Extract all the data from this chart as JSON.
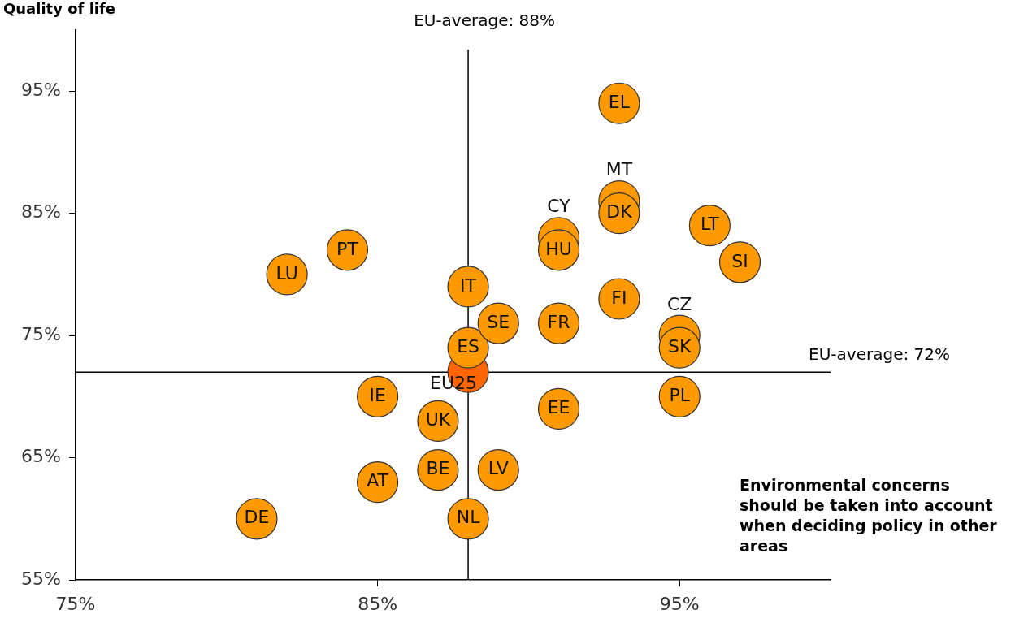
{
  "chart_data": {
    "type": "scatter",
    "xlabel": "Environmental concerns should be taken into account when deciding policy in other areas",
    "ylabel": "Quality of life",
    "marker": "circle",
    "grid": false,
    "xlim": [
      75,
      100
    ],
    "ylim": [
      55,
      100
    ],
    "xticks": [
      {
        "value": 75,
        "label": "75%"
      },
      {
        "value": 85,
        "label": "85%"
      },
      {
        "value": 95,
        "label": "95%"
      }
    ],
    "yticks": [
      {
        "value": 55,
        "label": "55%"
      },
      {
        "value": 65,
        "label": "65%"
      },
      {
        "value": 75,
        "label": "75%"
      },
      {
        "value": 85,
        "label": "85%"
      },
      {
        "value": 95,
        "label": "95%"
      }
    ],
    "ref_lines": [
      {
        "axis": "x",
        "value": 88,
        "label": "EU-average: 88%",
        "color": "#000000"
      },
      {
        "axis": "y",
        "value": 72,
        "label": "EU-average: 72%",
        "color": "#000000"
      }
    ],
    "series": [
      {
        "name": "EU25",
        "color": "#ff6600",
        "x": [
          88
        ],
        "values": [
          72
        ]
      },
      {
        "name": "EL",
        "color": "#ff9900",
        "x": [
          93
        ],
        "values": [
          94
        ]
      },
      {
        "name": "MT",
        "color": "#ff9900",
        "x": [
          93
        ],
        "values": [
          86
        ]
      },
      {
        "name": "DK",
        "color": "#ff9900",
        "x": [
          93
        ],
        "values": [
          85
        ]
      },
      {
        "name": "CY",
        "color": "#ff9900",
        "x": [
          91
        ],
        "values": [
          83
        ]
      },
      {
        "name": "HU",
        "color": "#ff9900",
        "x": [
          91
        ],
        "values": [
          82
        ]
      },
      {
        "name": "LT",
        "color": "#ff9900",
        "x": [
          96
        ],
        "values": [
          84
        ]
      },
      {
        "name": "SI",
        "color": "#ff9900",
        "x": [
          97
        ],
        "values": [
          81
        ]
      },
      {
        "name": "PT",
        "color": "#ff9900",
        "x": [
          84
        ],
        "values": [
          82
        ]
      },
      {
        "name": "LU",
        "color": "#ff9900",
        "x": [
          82
        ],
        "values": [
          80
        ]
      },
      {
        "name": "IT",
        "color": "#ff9900",
        "x": [
          88
        ],
        "values": [
          79
        ]
      },
      {
        "name": "FI",
        "color": "#ff9900",
        "x": [
          93
        ],
        "values": [
          78
        ]
      },
      {
        "name": "CZ",
        "color": "#ff9900",
        "x": [
          95
        ],
        "values": [
          75
        ]
      },
      {
        "name": "SK",
        "color": "#ff9900",
        "x": [
          95
        ],
        "values": [
          74
        ]
      },
      {
        "name": "ES",
        "color": "#ff9900",
        "x": [
          88
        ],
        "values": [
          74
        ]
      },
      {
        "name": "SE",
        "color": "#ff9900",
        "x": [
          89
        ],
        "values": [
          76
        ]
      },
      {
        "name": "FR",
        "color": "#ff9900",
        "x": [
          91
        ],
        "values": [
          76
        ]
      },
      {
        "name": "IE",
        "color": "#ff9900",
        "x": [
          85
        ],
        "values": [
          70
        ]
      },
      {
        "name": "PL",
        "color": "#ff9900",
        "x": [
          95
        ],
        "values": [
          70
        ]
      },
      {
        "name": "UK",
        "color": "#ff9900",
        "x": [
          87
        ],
        "values": [
          68
        ]
      },
      {
        "name": "EE",
        "color": "#ff9900",
        "x": [
          91
        ],
        "values": [
          69
        ]
      },
      {
        "name": "BE",
        "color": "#ff9900",
        "x": [
          87
        ],
        "values": [
          64
        ]
      },
      {
        "name": "LV",
        "color": "#ff9900",
        "x": [
          89
        ],
        "values": [
          64
        ]
      },
      {
        "name": "AT",
        "color": "#ff9900",
        "x": [
          85
        ],
        "values": [
          63
        ]
      },
      {
        "name": "DE",
        "color": "#ff9900",
        "x": [
          81
        ],
        "values": [
          60
        ]
      },
      {
        "name": "NL",
        "color": "#ff9900",
        "x": [
          88
        ],
        "values": [
          60
        ]
      }
    ]
  }
}
